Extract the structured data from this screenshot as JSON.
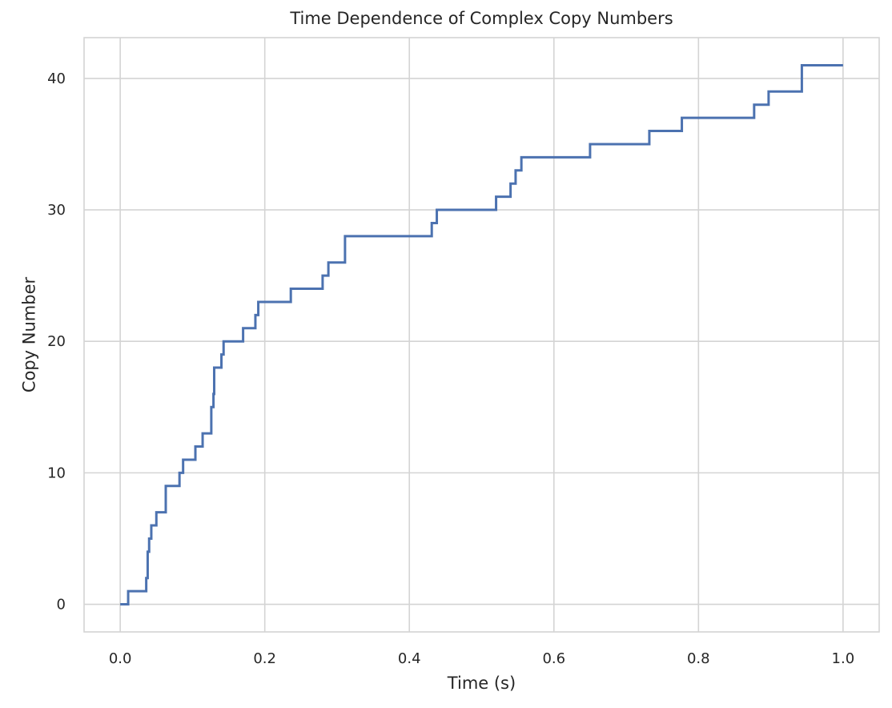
{
  "chart_data": {
    "type": "line",
    "drawstyle": "steps-post",
    "title": "Time Dependence of Complex Copy Numbers",
    "xlabel": "Time (s)",
    "ylabel": "Copy Number",
    "xlim": [
      -0.05,
      1.05
    ],
    "ylim": [
      -2.1,
      43.1
    ],
    "xticks": [
      0.0,
      0.2,
      0.4,
      0.6,
      0.8,
      1.0
    ],
    "xtick_labels": [
      "0.0",
      "0.2",
      "0.4",
      "0.6",
      "0.8",
      "1.0"
    ],
    "yticks": [
      0,
      10,
      20,
      30,
      40
    ],
    "ytick_labels": [
      "0",
      "10",
      "20",
      "30",
      "40"
    ],
    "grid": true,
    "series": [
      {
        "color": "#4c72b0",
        "x": [
          0.0,
          0.011,
          0.036,
          0.038,
          0.04,
          0.043,
          0.045,
          0.05,
          0.063,
          0.082,
          0.087,
          0.104,
          0.114,
          0.126,
          0.129,
          0.13,
          0.132,
          0.14,
          0.143,
          0.17,
          0.187,
          0.191,
          0.236,
          0.28,
          0.288,
          0.311,
          0.431,
          0.438,
          0.52,
          0.54,
          0.547,
          0.555,
          0.65,
          0.732,
          0.777,
          0.877,
          0.897,
          0.943,
          1.0
        ],
        "y": [
          0,
          1,
          2,
          4,
          5,
          6,
          6,
          7,
          9,
          10,
          11,
          12,
          13,
          15,
          16,
          18,
          18,
          19,
          20,
          21,
          22,
          23,
          24,
          25,
          26,
          28,
          29,
          30,
          31,
          32,
          33,
          34,
          35,
          36,
          37,
          38,
          39,
          41,
          41
        ]
      }
    ]
  }
}
